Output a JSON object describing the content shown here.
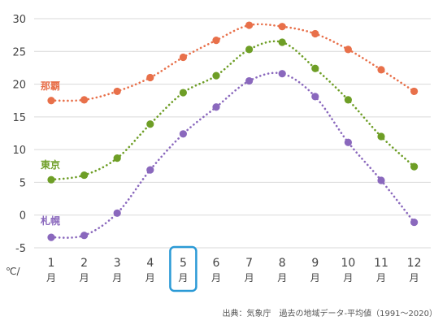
{
  "chart_data": {
    "type": "line",
    "y_unit": "℃/",
    "ylim": [
      -5,
      30
    ],
    "yticks": [
      -5,
      0,
      5,
      10,
      15,
      20,
      25,
      30
    ],
    "grid": true,
    "highlighted_category": "5",
    "categories": [
      {
        "num": "1",
        "unit": "月"
      },
      {
        "num": "2",
        "unit": "月"
      },
      {
        "num": "3",
        "unit": "月"
      },
      {
        "num": "4",
        "unit": "月"
      },
      {
        "num": "5",
        "unit": "月"
      },
      {
        "num": "6",
        "unit": "月"
      },
      {
        "num": "7",
        "unit": "月"
      },
      {
        "num": "8",
        "unit": "月"
      },
      {
        "num": "9",
        "unit": "月"
      },
      {
        "num": "10",
        "unit": "月"
      },
      {
        "num": "11",
        "unit": "月"
      },
      {
        "num": "12",
        "unit": "月"
      }
    ],
    "series": [
      {
        "name": "那覇",
        "color": "#e8704a",
        "values": [
          17.5,
          17.6,
          18.9,
          21.0,
          24.1,
          26.7,
          29.0,
          28.8,
          27.7,
          25.3,
          22.2,
          18.9
        ]
      },
      {
        "name": "東京",
        "color": "#6e9e26",
        "values": [
          5.4,
          6.1,
          8.7,
          13.9,
          18.7,
          21.3,
          25.3,
          26.4,
          22.4,
          17.6,
          12.0,
          7.4
        ]
      },
      {
        "name": "札幌",
        "color": "#8a68bd",
        "values": [
          -3.4,
          -3.1,
          0.3,
          6.9,
          12.4,
          16.5,
          20.5,
          21.6,
          18.1,
          11.1,
          5.3,
          -1.1
        ]
      }
    ],
    "source": "出典：気象庁　過去の地域データ-平均値（1991〜2020）"
  }
}
